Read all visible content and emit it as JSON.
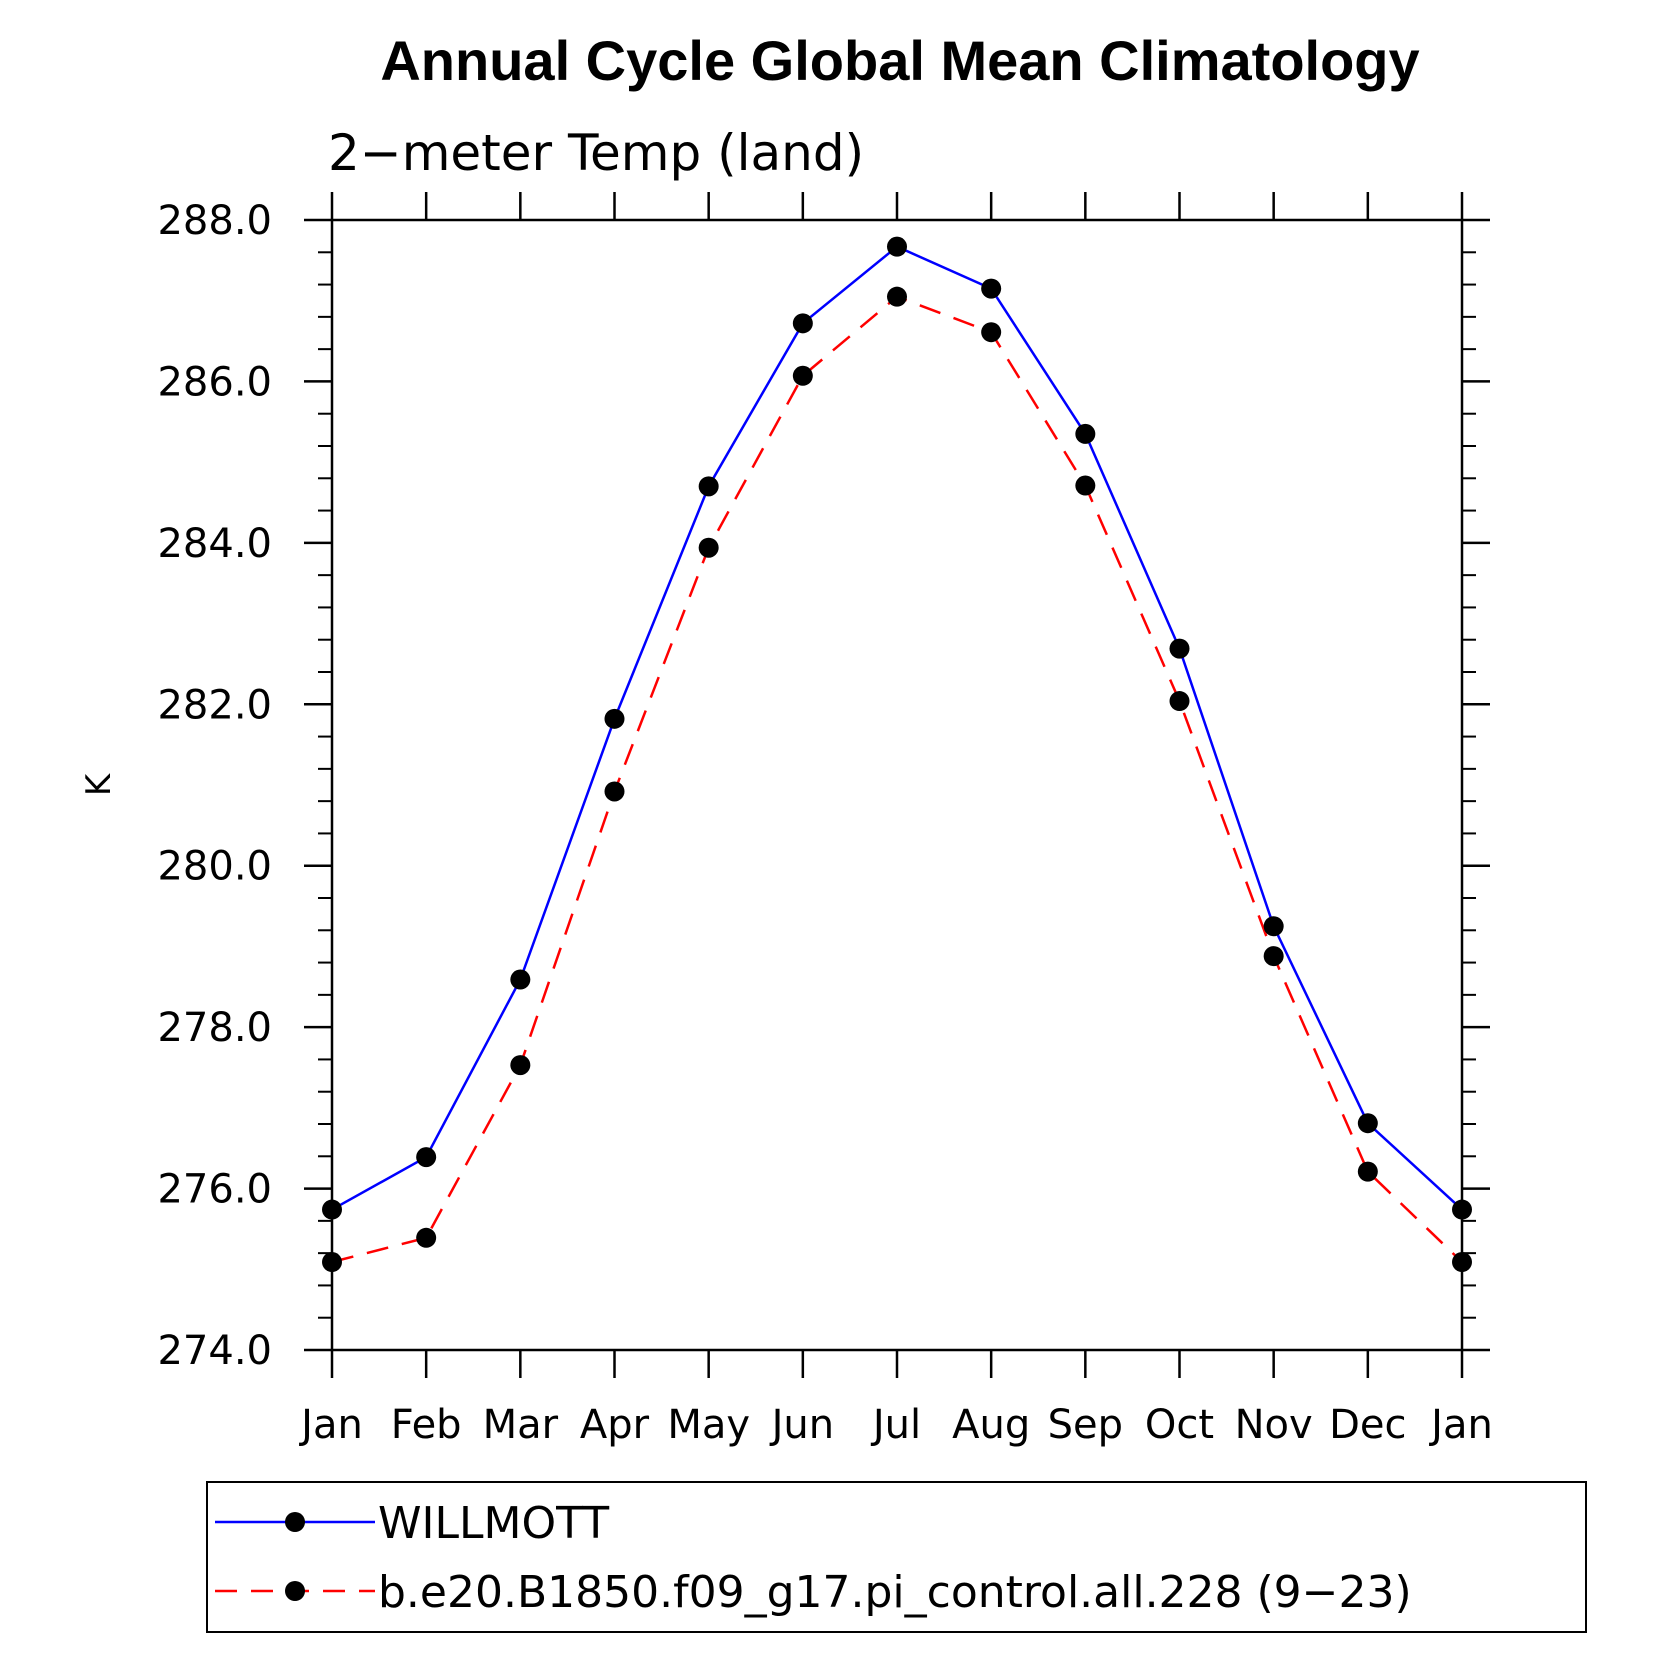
{
  "chart_data": {
    "type": "line",
    "title": "Annual Cycle Global Mean Climatology",
    "subtitle": "2−meter Temp (land)",
    "xlabel": "",
    "ylabel": "K",
    "categories": [
      "Jan",
      "Feb",
      "Mar",
      "Apr",
      "May",
      "Jun",
      "Jul",
      "Aug",
      "Sep",
      "Oct",
      "Nov",
      "Dec",
      "Jan"
    ],
    "ylim": [
      274.0,
      288.0
    ],
    "yticks": [
      "274.0",
      "276.0",
      "278.0",
      "280.0",
      "282.0",
      "284.0",
      "286.0",
      "288.0"
    ],
    "legend_position": "bottom",
    "series": [
      {
        "name": "WILLMOTT",
        "color": "#0000ff",
        "dash": "solid",
        "values": [
          275.74,
          276.39,
          278.59,
          281.82,
          284.7,
          286.72,
          287.67,
          287.15,
          285.35,
          282.69,
          279.25,
          276.81,
          275.74
        ]
      },
      {
        "name": "b.e20.B1850.f09_g17.pi_control.all.228 (9−23)",
        "color": "#ff0000",
        "dash": "dashed",
        "values": [
          275.09,
          275.39,
          277.53,
          280.92,
          283.94,
          286.07,
          287.05,
          286.61,
          284.71,
          282.04,
          278.88,
          276.21,
          275.09
        ]
      }
    ],
    "marker_color": "#000000"
  }
}
